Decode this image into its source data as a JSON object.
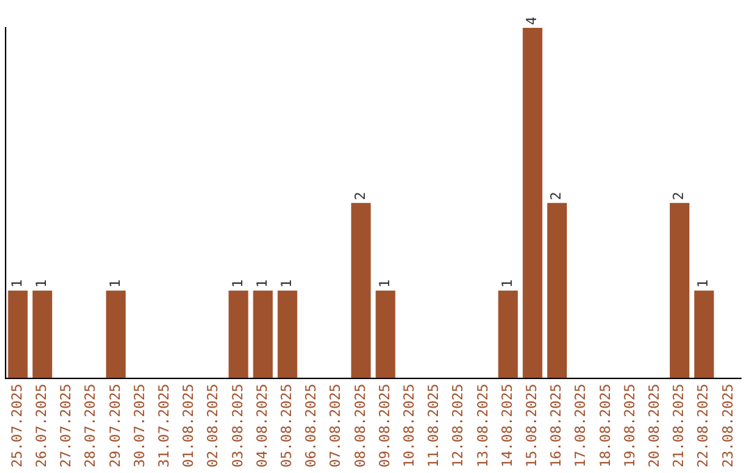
{
  "chart_data": {
    "type": "bar",
    "categories": [
      "25.07.2025",
      "26.07.2025",
      "27.07.2025",
      "28.07.2025",
      "29.07.2025",
      "30.07.2025",
      "31.07.2025",
      "01.08.2025",
      "02.08.2025",
      "03.08.2025",
      "04.08.2025",
      "05.08.2025",
      "06.08.2025",
      "07.08.2025",
      "08.08.2025",
      "09.08.2025",
      "10.08.2025",
      "11.08.2025",
      "12.08.2025",
      "13.08.2025",
      "14.08.2025",
      "15.08.2025",
      "16.08.2025",
      "17.08.2025",
      "18.08.2025",
      "19.08.2025",
      "20.08.2025",
      "21.08.2025",
      "22.08.2025",
      "23.08.2025"
    ],
    "values": [
      1,
      1,
      0,
      0,
      1,
      0,
      0,
      0,
      0,
      1,
      1,
      1,
      0,
      0,
      2,
      1,
      0,
      0,
      0,
      0,
      1,
      4,
      2,
      0,
      0,
      0,
      0,
      2,
      1,
      0
    ],
    "value_labels": [
      "1",
      "1",
      null,
      null,
      "1",
      null,
      null,
      null,
      null,
      "1",
      "1",
      "1",
      null,
      null,
      "2",
      "1",
      null,
      null,
      null,
      null,
      "1",
      "4",
      "2",
      null,
      null,
      null,
      null,
      "2",
      "1",
      null
    ],
    "color": "#a0522d",
    "grid": false,
    "legend": false,
    "tick_labels": "x"
  }
}
